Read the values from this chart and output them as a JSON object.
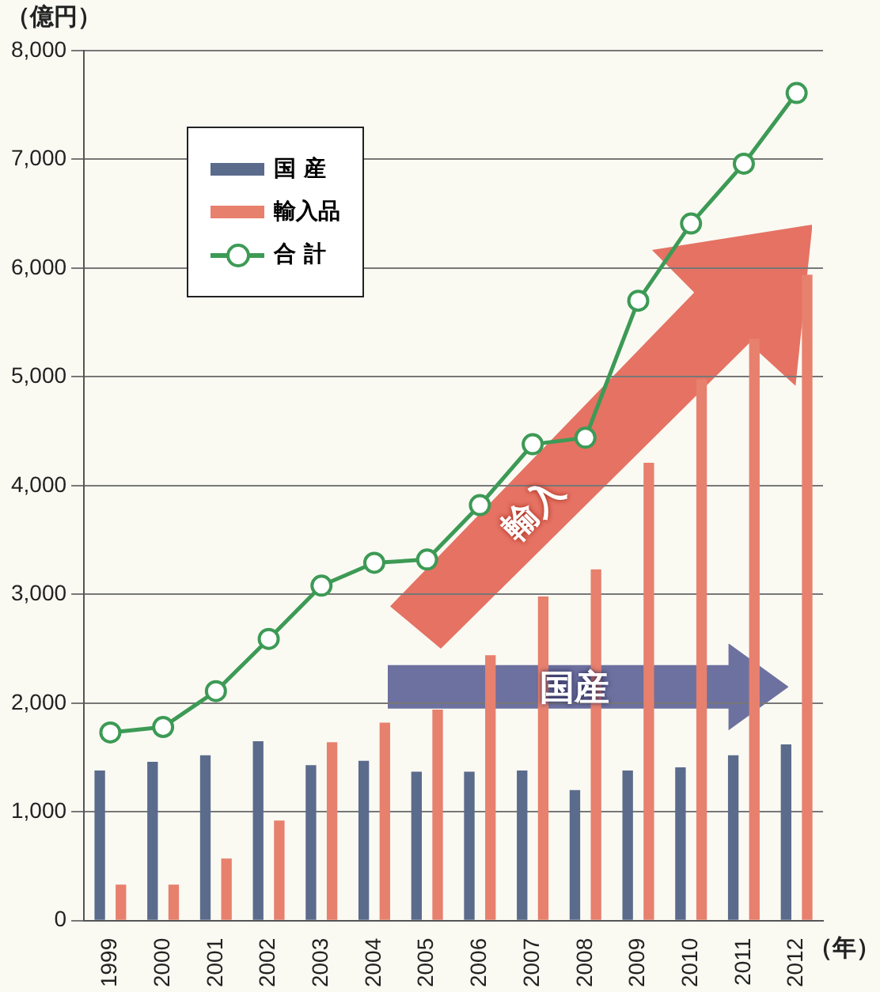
{
  "chart_data": {
    "type": "bar",
    "ylabel": "（億円）",
    "xlabel": "（年）",
    "categories": [
      "1999",
      "2000",
      "2001",
      "2002",
      "2003",
      "2004",
      "2005",
      "2006",
      "2007",
      "2008",
      "2009",
      "2010",
      "2011",
      "2012"
    ],
    "series": [
      {
        "name": "国 産",
        "color": "#5b6b8c",
        "values": [
          1380,
          1460,
          1520,
          1650,
          1430,
          1470,
          1370,
          1370,
          1380,
          1200,
          1380,
          1410,
          1520,
          1620
        ]
      },
      {
        "name": "輸入品",
        "color": "#e8806e",
        "values": [
          330,
          330,
          570,
          920,
          1640,
          1820,
          1940,
          2440,
          2980,
          3230,
          4210,
          4980,
          5350,
          5940
        ]
      },
      {
        "name": "合 計",
        "type": "line",
        "color": "#3d9a55",
        "values": [
          1730,
          1780,
          2110,
          2590,
          3080,
          3290,
          3320,
          3820,
          4380,
          4440,
          5700,
          6410,
          6960,
          7610
        ]
      }
    ],
    "ylim": [
      0,
      8000
    ],
    "yticks": [
      0,
      {
        "value": 1000,
        "label": "1,000"
      },
      {
        "value": 2000,
        "label": "2,000"
      },
      {
        "value": 3000,
        "label": "3,000"
      },
      {
        "value": 4000,
        "label": "4,000"
      },
      {
        "value": 5000,
        "label": "5,000"
      },
      {
        "value": 6000,
        "label": "6,000"
      },
      {
        "value": 7000,
        "label": "7,000"
      },
      {
        "value": 8000,
        "label": "8,000"
      }
    ],
    "grid": "y",
    "legend": "top left",
    "marker": "circle",
    "line_style": "solid",
    "annotations": [
      "輸入",
      "国産"
    ]
  }
}
